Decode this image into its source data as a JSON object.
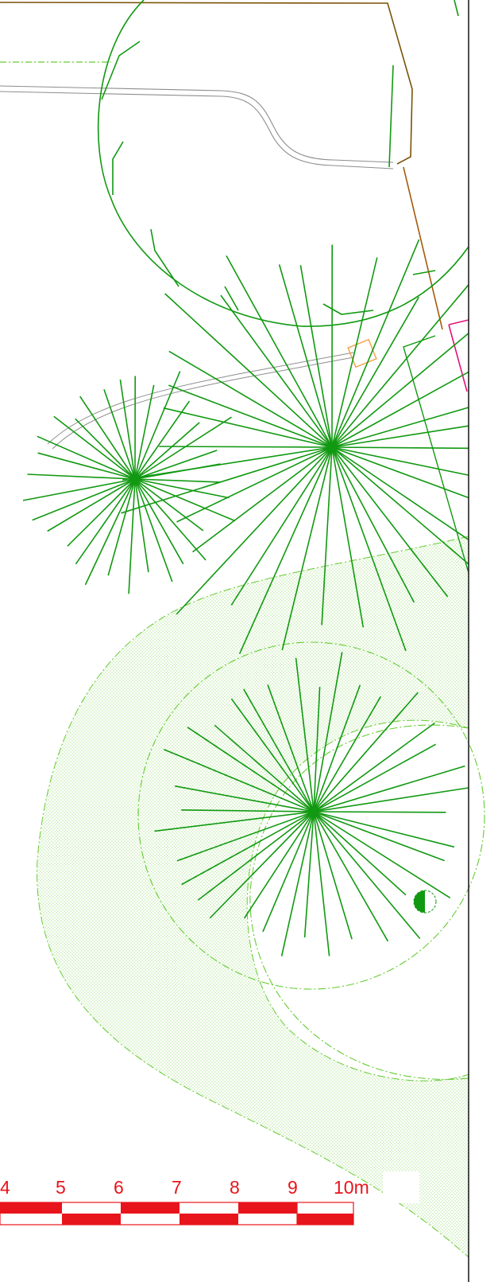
{
  "plan": {
    "colors": {
      "tree": "#119911",
      "boundary_brown": "#7a5207",
      "boundary_rust": "#a4590e",
      "path_gray": "#8d8d8d",
      "hatch_green": "#66cc33",
      "magenta": "#e0157a",
      "orange_box": "#f4a64c",
      "scale_red": "#e8141c",
      "frame": "#222222"
    },
    "icons": [
      "tree-symbol",
      "half-filled-circle-icon"
    ]
  },
  "scale_bar": {
    "labels": [
      "4",
      "5",
      "6",
      "7",
      "8",
      "9",
      "10m"
    ]
  }
}
